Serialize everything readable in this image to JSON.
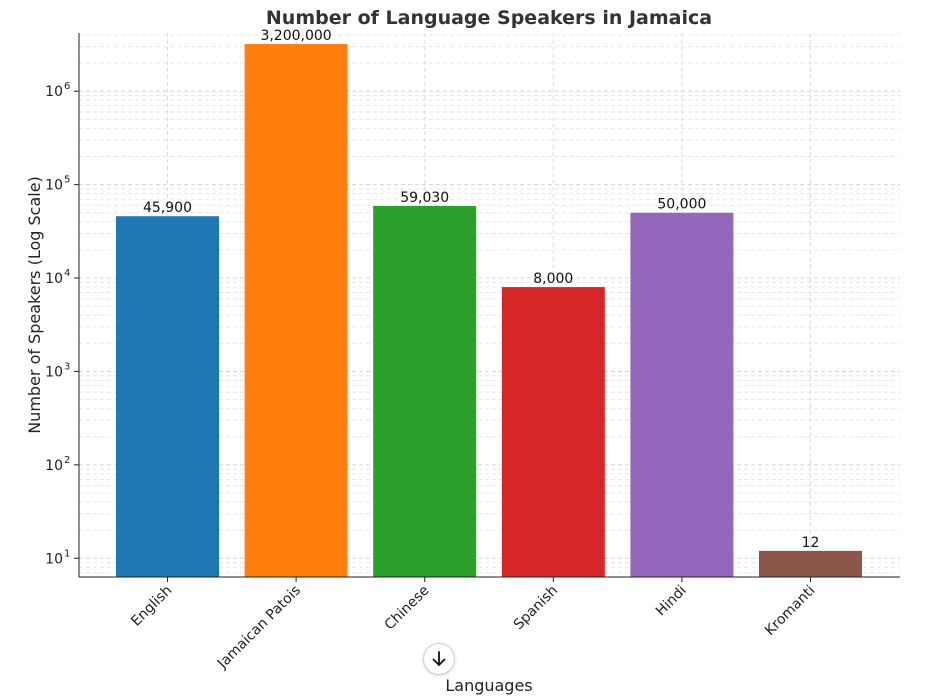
{
  "chart_data": {
    "type": "bar",
    "title": "Number of Language Speakers in Jamaica",
    "xlabel": "Languages",
    "ylabel": "Number of Speakers (Log Scale)",
    "yscale": "log",
    "ylim": [
      6.3,
      4200000
    ],
    "grid": true,
    "categories": [
      "English",
      "Jamaican Patois",
      "Chinese",
      "Spanish",
      "Hindi",
      "Kromanti"
    ],
    "values": [
      45900,
      3200000,
      59030,
      8000,
      50000,
      12
    ],
    "value_labels": [
      "45,900",
      "3,200,000",
      "59,030",
      "8,000",
      "50,000",
      "12"
    ],
    "colors": [
      "#1f77b4",
      "#ff7f0e",
      "#2ca02c",
      "#d62728",
      "#9467bd",
      "#8c564b"
    ],
    "yticks": [
      {
        "base": "10",
        "exp": "1"
      },
      {
        "base": "10",
        "exp": "2"
      },
      {
        "base": "10",
        "exp": "3"
      },
      {
        "base": "10",
        "exp": "4"
      },
      {
        "base": "10",
        "exp": "5"
      },
      {
        "base": "10",
        "exp": "6"
      }
    ]
  },
  "scroll_button": {
    "icon": "arrow-down-icon"
  }
}
